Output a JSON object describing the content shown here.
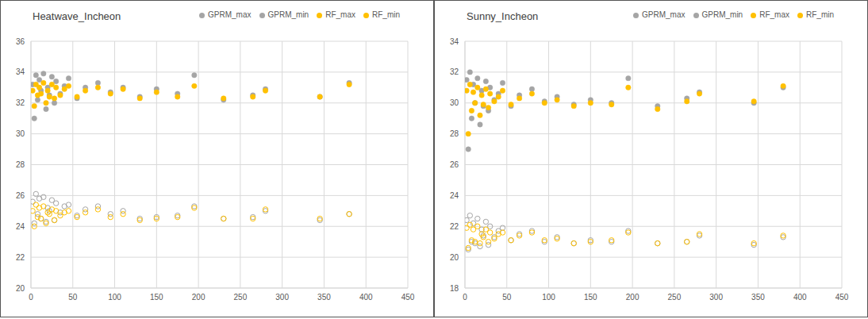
{
  "chart_data": [
    {
      "type": "scatter",
      "title": "Heatwave_Incheon",
      "grid": true,
      "legend": "top-right",
      "xlim": [
        0,
        450
      ],
      "xticks": [
        0,
        50,
        100,
        150,
        200,
        250,
        300,
        350,
        400,
        450
      ],
      "ylim": [
        20,
        36
      ],
      "yticks": [
        20,
        22,
        24,
        26,
        28,
        30,
        32,
        34,
        36
      ],
      "x": [
        2,
        4,
        6,
        8,
        10,
        12,
        15,
        18,
        20,
        22,
        25,
        28,
        30,
        35,
        40,
        45,
        55,
        65,
        80,
        95,
        110,
        130,
        150,
        175,
        195,
        230,
        265,
        280,
        345,
        380
      ],
      "series": [
        {
          "name": "GPRM_max",
          "color": "#a5a5a5",
          "marker": "circle",
          "values": [
            33.2,
            31.0,
            33.8,
            32.2,
            33.5,
            32.8,
            33.9,
            31.6,
            33.0,
            32.5,
            33.7,
            32.0,
            33.4,
            32.6,
            33.1,
            33.6,
            32.3,
            33.0,
            33.3,
            32.7,
            33.0,
            32.4,
            32.9,
            32.6,
            33.8,
            32.2,
            32.5,
            32.9,
            32.4,
            33.3
          ]
        },
        {
          "name": "RF_max",
          "color": "#ffc000",
          "marker": "circle",
          "values": [
            32.8,
            31.8,
            33.2,
            32.5,
            33.0,
            32.6,
            33.3,
            32.0,
            32.8,
            32.4,
            33.2,
            32.3,
            33.0,
            32.5,
            32.9,
            33.1,
            32.4,
            32.8,
            33.0,
            32.6,
            32.9,
            32.3,
            32.7,
            32.4,
            33.1,
            32.3,
            32.4,
            32.8,
            32.4,
            33.2
          ]
        },
        {
          "name": "GPRM_min",
          "color": "#a5a5a5",
          "marker": "open_circle",
          "values": [
            25.6,
            24.2,
            26.1,
            24.8,
            25.8,
            24.5,
            25.9,
            24.3,
            25.2,
            25.0,
            25.7,
            24.4,
            25.5,
            24.9,
            25.3,
            25.4,
            24.7,
            25.1,
            25.3,
            24.8,
            25.0,
            24.5,
            24.6,
            24.7,
            25.3,
            24.5,
            24.6,
            25.0,
            24.4,
            24.8
          ]
        },
        {
          "name": "RF_min",
          "color": "#ffc000",
          "marker": "open_circle",
          "values": [
            25.0,
            24.0,
            25.4,
            24.6,
            25.2,
            24.5,
            25.3,
            24.2,
            24.9,
            24.8,
            25.1,
            24.4,
            25.0,
            24.7,
            24.9,
            25.0,
            24.6,
            24.9,
            25.1,
            24.6,
            24.8,
            24.4,
            24.5,
            24.6,
            25.2,
            24.5,
            24.5,
            25.1,
            24.5,
            24.8
          ]
        }
      ]
    },
    {
      "type": "scatter",
      "title": "Sunny_Incheon",
      "grid": true,
      "legend": "top-right",
      "xlim": [
        0,
        450
      ],
      "xticks": [
        0,
        50,
        100,
        150,
        200,
        250,
        300,
        350,
        400,
        450
      ],
      "ylim": [
        18,
        34
      ],
      "yticks": [
        18,
        20,
        22,
        24,
        26,
        28,
        30,
        32,
        34
      ],
      "x": [
        2,
        4,
        6,
        8,
        10,
        12,
        15,
        18,
        20,
        22,
        25,
        28,
        30,
        35,
        40,
        45,
        55,
        65,
        80,
        95,
        110,
        130,
        150,
        175,
        195,
        230,
        265,
        280,
        345,
        380
      ],
      "series": [
        {
          "name": "GPRM_max",
          "color": "#a5a5a5",
          "marker": "circle",
          "values": [
            31.5,
            27.0,
            32.0,
            29.0,
            31.2,
            30.0,
            31.6,
            28.6,
            30.8,
            29.8,
            31.4,
            29.5,
            31.0,
            30.2,
            30.6,
            31.3,
            29.8,
            30.5,
            30.9,
            30.1,
            30.4,
            29.9,
            30.2,
            30.0,
            31.6,
            29.8,
            30.3,
            30.7,
            30.0,
            31.0
          ]
        },
        {
          "name": "RF_max",
          "color": "#ffc000",
          "marker": "circle",
          "values": [
            30.8,
            28.0,
            31.2,
            29.5,
            30.7,
            30.0,
            31.0,
            29.2,
            30.5,
            29.9,
            30.9,
            29.7,
            30.6,
            30.1,
            30.4,
            30.8,
            29.9,
            30.3,
            30.6,
            30.0,
            30.2,
            29.8,
            30.0,
            29.9,
            31.0,
            29.6,
            30.1,
            30.6,
            30.1,
            31.1
          ]
        },
        {
          "name": "GPRM_min",
          "color": "#a5a5a5",
          "marker": "open_circle",
          "values": [
            22.4,
            20.5,
            22.7,
            21.0,
            22.2,
            20.9,
            22.5,
            20.7,
            21.8,
            21.4,
            22.3,
            20.8,
            22.0,
            21.3,
            21.7,
            21.9,
            21.1,
            21.5,
            21.7,
            21.0,
            21.3,
            20.9,
            21.1,
            21.0,
            21.7,
            20.9,
            21.0,
            21.4,
            20.8,
            21.3
          ]
        },
        {
          "name": "RF_min",
          "color": "#ffc000",
          "marker": "open_circle",
          "values": [
            21.9,
            20.6,
            22.1,
            21.1,
            21.8,
            21.0,
            22.0,
            20.9,
            21.5,
            21.3,
            21.8,
            21.0,
            21.6,
            21.2,
            21.5,
            21.6,
            21.1,
            21.4,
            21.6,
            21.1,
            21.2,
            20.9,
            21.0,
            21.1,
            21.6,
            20.9,
            21.0,
            21.5,
            20.9,
            21.4
          ]
        }
      ]
    }
  ]
}
